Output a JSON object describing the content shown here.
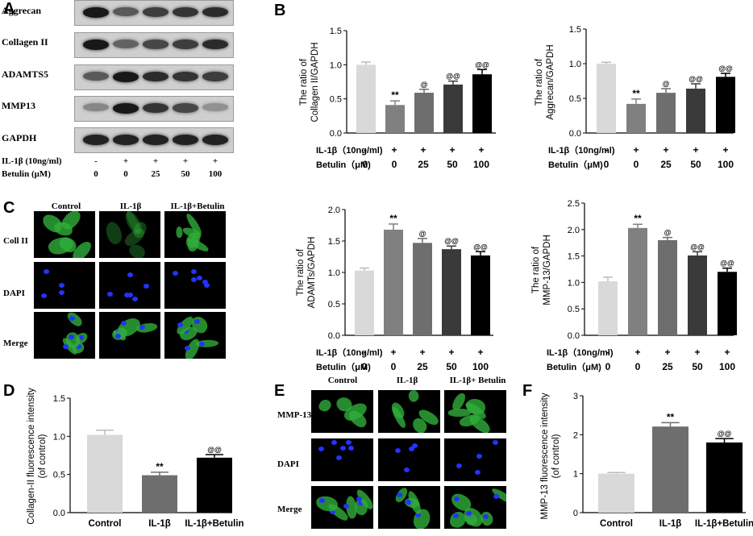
{
  "panel_labels": {
    "a": "A",
    "b": "B",
    "c": "C",
    "d": "D",
    "e": "E",
    "f": "F"
  },
  "western_blot": {
    "proteins": [
      "Aggrecan",
      "Collagen II",
      "ADAMTS5",
      "MMP13",
      "GAPDH"
    ],
    "intensities": [
      [
        0.95,
        0.6,
        0.75,
        0.8,
        0.85
      ],
      [
        0.95,
        0.55,
        0.7,
        0.75,
        0.85
      ],
      [
        0.6,
        0.95,
        0.85,
        0.8,
        0.75
      ],
      [
        0.35,
        0.95,
        0.8,
        0.7,
        0.3
      ],
      [
        0.9,
        0.9,
        0.9,
        0.9,
        0.9
      ]
    ],
    "treatment_rows": [
      {
        "label": "IL-1β (10ng/ml)",
        "values": [
          "-",
          "+",
          "+",
          "+",
          "+"
        ]
      },
      {
        "label": "Betulin (μM)",
        "values": [
          "0",
          "0",
          "25",
          "50",
          "100"
        ]
      }
    ]
  },
  "chart_treatment": {
    "row1_label": "IL-1β（10ng/ml)",
    "row1_values": [
      "-",
      "+",
      "+",
      "+",
      "+"
    ],
    "row2_label": "Betulin（μM)",
    "row2_values": [
      "0",
      "0",
      "25",
      "50",
      "100"
    ]
  },
  "microscopy_c": {
    "columns": [
      "Control",
      "IL-1β",
      "IL-1β+Betulin"
    ],
    "rows": [
      "Coll II",
      "DAPI",
      "Merge"
    ]
  },
  "microscopy_e": {
    "columns": [
      "Control",
      "IL-1β",
      "IL-1β+ Betulin"
    ],
    "rows": [
      "MMP-13",
      "DAPI",
      "Merge"
    ]
  },
  "colors": {
    "bar_fills": [
      "#d9d9d9",
      "#808080",
      "#6e6e6e",
      "#3a3a3a",
      "#000000"
    ],
    "green_stain": "#2fae3a",
    "dapi_blue": "#2233ff"
  },
  "chart_data": [
    {
      "id": "collagen",
      "type": "bar",
      "ylabel": [
        "The ratio of",
        "Collagen II/GAPDH"
      ],
      "categories": [
        "Control",
        "IL-1β",
        "Betulin 25",
        "Betulin 50",
        "Betulin 100"
      ],
      "values": [
        1.0,
        0.41,
        0.59,
        0.71,
        0.86
      ],
      "errors": [
        0.04,
        0.06,
        0.05,
        0.05,
        0.07
      ],
      "annotations": [
        "",
        "**",
        "@",
        "@@",
        "@@"
      ],
      "ylim": [
        0,
        1.5
      ],
      "yticks": [
        "0.0",
        "0.5",
        "1.0",
        "1.5"
      ],
      "ytick_values": [
        0,
        0.5,
        1.0,
        1.5
      ]
    },
    {
      "id": "aggrecan",
      "type": "bar",
      "ylabel": [
        "The ratio of",
        "Aggrecan/GAPDH"
      ],
      "categories": [
        "Control",
        "IL-1β",
        "Betulin 25",
        "Betulin 50",
        "Betulin 100"
      ],
      "values": [
        1.0,
        0.42,
        0.58,
        0.64,
        0.81
      ],
      "errors": [
        0.02,
        0.07,
        0.06,
        0.07,
        0.05
      ],
      "annotations": [
        "",
        "**",
        "@",
        "@@",
        "@@"
      ],
      "ylim": [
        0,
        1.5
      ],
      "yticks": [
        "0.0",
        "0.5",
        "1.0",
        "1.5"
      ],
      "ytick_values": [
        0,
        0.5,
        1.0,
        1.5
      ]
    },
    {
      "id": "adamts",
      "type": "bar",
      "ylabel": [
        "The ratio of",
        "ADAMTs/GAPDH"
      ],
      "categories": [
        "Control",
        "IL-1β",
        "Betulin 25",
        "Betulin 50",
        "Betulin 100"
      ],
      "values": [
        1.03,
        1.68,
        1.47,
        1.37,
        1.27
      ],
      "errors": [
        0.04,
        0.09,
        0.07,
        0.05,
        0.06
      ],
      "annotations": [
        "",
        "**",
        "@",
        "@@",
        "@@"
      ],
      "ylim": [
        0,
        2.0
      ],
      "yticks": [
        "0.0",
        "0.5",
        "1.0",
        "1.5",
        "2.0"
      ],
      "ytick_values": [
        0,
        0.5,
        1.0,
        1.5,
        2.0
      ]
    },
    {
      "id": "mmp13",
      "type": "bar",
      "ylabel": [
        "The ratio of",
        "MMP-13/GAPDH"
      ],
      "categories": [
        "Control",
        "IL-1β",
        "Betulin 25",
        "Betulin 50",
        "Betulin 100"
      ],
      "values": [
        1.02,
        2.03,
        1.8,
        1.51,
        1.2
      ],
      "errors": [
        0.08,
        0.07,
        0.05,
        0.07,
        0.07
      ],
      "annotations": [
        "",
        "**",
        "@",
        "@@",
        "@@"
      ],
      "ylim": [
        0,
        2.5
      ],
      "yticks": [
        "0.0",
        "0.5",
        "1.0",
        "1.5",
        "2.0",
        "2.5"
      ],
      "ytick_values": [
        0,
        0.5,
        1.0,
        1.5,
        2.0,
        2.5
      ]
    },
    {
      "id": "fluor_d",
      "type": "bar",
      "ylabel": [
        "Collagen-II fluorescence intensity",
        "(of control)"
      ],
      "categories": [
        "Control",
        "IL-1β",
        "IL-1β+Betulin"
      ],
      "values": [
        1.02,
        0.49,
        0.72
      ],
      "errors": [
        0.06,
        0.04,
        0.04
      ],
      "annotations": [
        "",
        "**",
        "@@"
      ],
      "ylim": [
        0,
        1.5
      ],
      "yticks": [
        "0.0",
        "0.5",
        "1.0",
        "1.5"
      ],
      "ytick_values": [
        0,
        0.5,
        1.0,
        1.5
      ]
    },
    {
      "id": "fluor_f",
      "type": "bar",
      "ylabel": [
        "MMP-13 fluorescence intensity",
        "(of control)"
      ],
      "categories": [
        "Control",
        "IL-1β",
        "IL-1β+Betulin"
      ],
      "values": [
        1.0,
        2.21,
        1.8
      ],
      "errors": [
        0.03,
        0.1,
        0.1
      ],
      "annotations": [
        "",
        "**",
        "@@"
      ],
      "ylim": [
        0,
        3
      ],
      "yticks": [
        "0",
        "1",
        "2",
        "3"
      ],
      "ytick_values": [
        0,
        1,
        2,
        3
      ]
    }
  ]
}
